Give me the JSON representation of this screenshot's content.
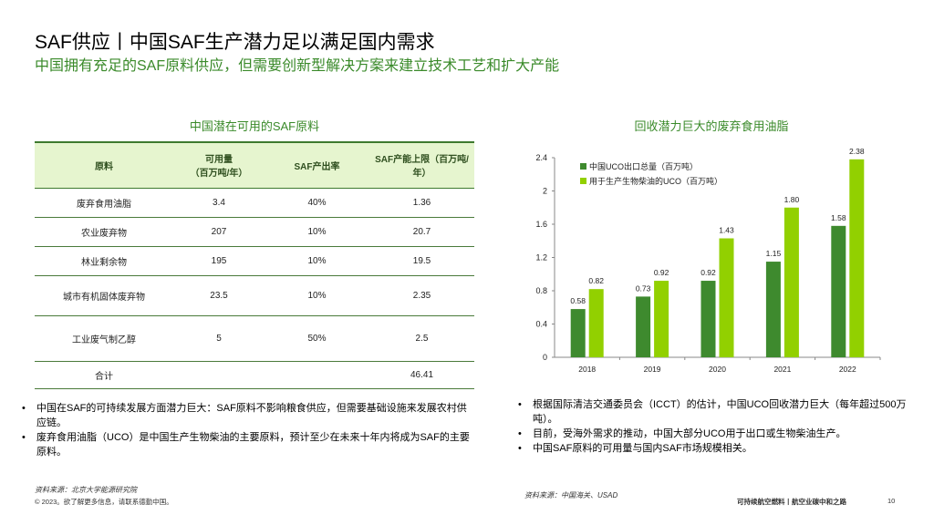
{
  "header": {
    "title": "SAF供应丨中国SAF生产潜力足以满足国内需求",
    "subtitle": "中国拥有充足的SAF原料供应，但需要创新型解决方案来建立技术工艺和扩大产能"
  },
  "table": {
    "title": "中国潜在可用的SAF原料",
    "columns": [
      "原料",
      "可用量\n（百万吨/年）",
      "SAF产出率",
      "SAF产能上限（百万吨/年）"
    ],
    "rows": [
      [
        "废弃食用油脂",
        "3.4",
        "40%",
        "1.36"
      ],
      [
        "农业废弃物",
        "207",
        "10%",
        "20.7"
      ],
      [
        "林业剩余物",
        "195",
        "10%",
        "19.5"
      ],
      [
        "城市有机固体废弃物",
        "23.5",
        "10%",
        "2.35"
      ],
      [
        "工业废气制乙醇",
        "5",
        "50%",
        "2.5"
      ],
      [
        "合计",
        "",
        "",
        "46.41"
      ]
    ]
  },
  "chart_data": {
    "type": "bar",
    "title": "回收潜力巨大的废弃食用油脂",
    "categories": [
      "2018",
      "2019",
      "2020",
      "2021",
      "2022"
    ],
    "series": [
      {
        "name": "中国UCO出口总量（百万吨）",
        "values": [
          0.58,
          0.73,
          0.92,
          1.15,
          1.58
        ],
        "color": "#3e8a2e"
      },
      {
        "name": "用于生产生物柴油的UCO（百万吨）",
        "values": [
          0.82,
          0.92,
          1.43,
          1.8,
          2.38
        ],
        "color": "#92d000"
      }
    ],
    "ylim": [
      0,
      2.4
    ],
    "yticks": [
      "0",
      "0.4",
      "0.8",
      "1.2",
      "1.6",
      "2",
      "2.4"
    ],
    "legend": "top-left",
    "grid": false
  },
  "left_bullets": [
    "中国在SAF的可持续发展方面潜力巨大：SAF原料不影响粮食供应，但需要基础设施来发展农村供应链。",
    "废弃食用油脂（UCO）是中国生产生物柴油的主要原料，预计至少在未来十年内将成为SAF的主要原料。"
  ],
  "right_bullets": [
    "根据国际清洁交通委员会（ICCT）的估计，中国UCO回收潜力巨大（每年超过500万吨）。",
    "目前，受海外需求的推动，中国大部分UCO用于出口或生物柴油生产。",
    "中国SAF原料的可用量与国内SAF市场规模相关。"
  ],
  "footer": {
    "source_left": "资料来源：北京大学能源研究院",
    "source_right": "资料来源：中国海关、USAD",
    "copyright": "© 2023。欲了解更多信息，请联系德勤中国。",
    "report": "可持续航空燃料丨航空业碳中和之路",
    "page": "10"
  }
}
